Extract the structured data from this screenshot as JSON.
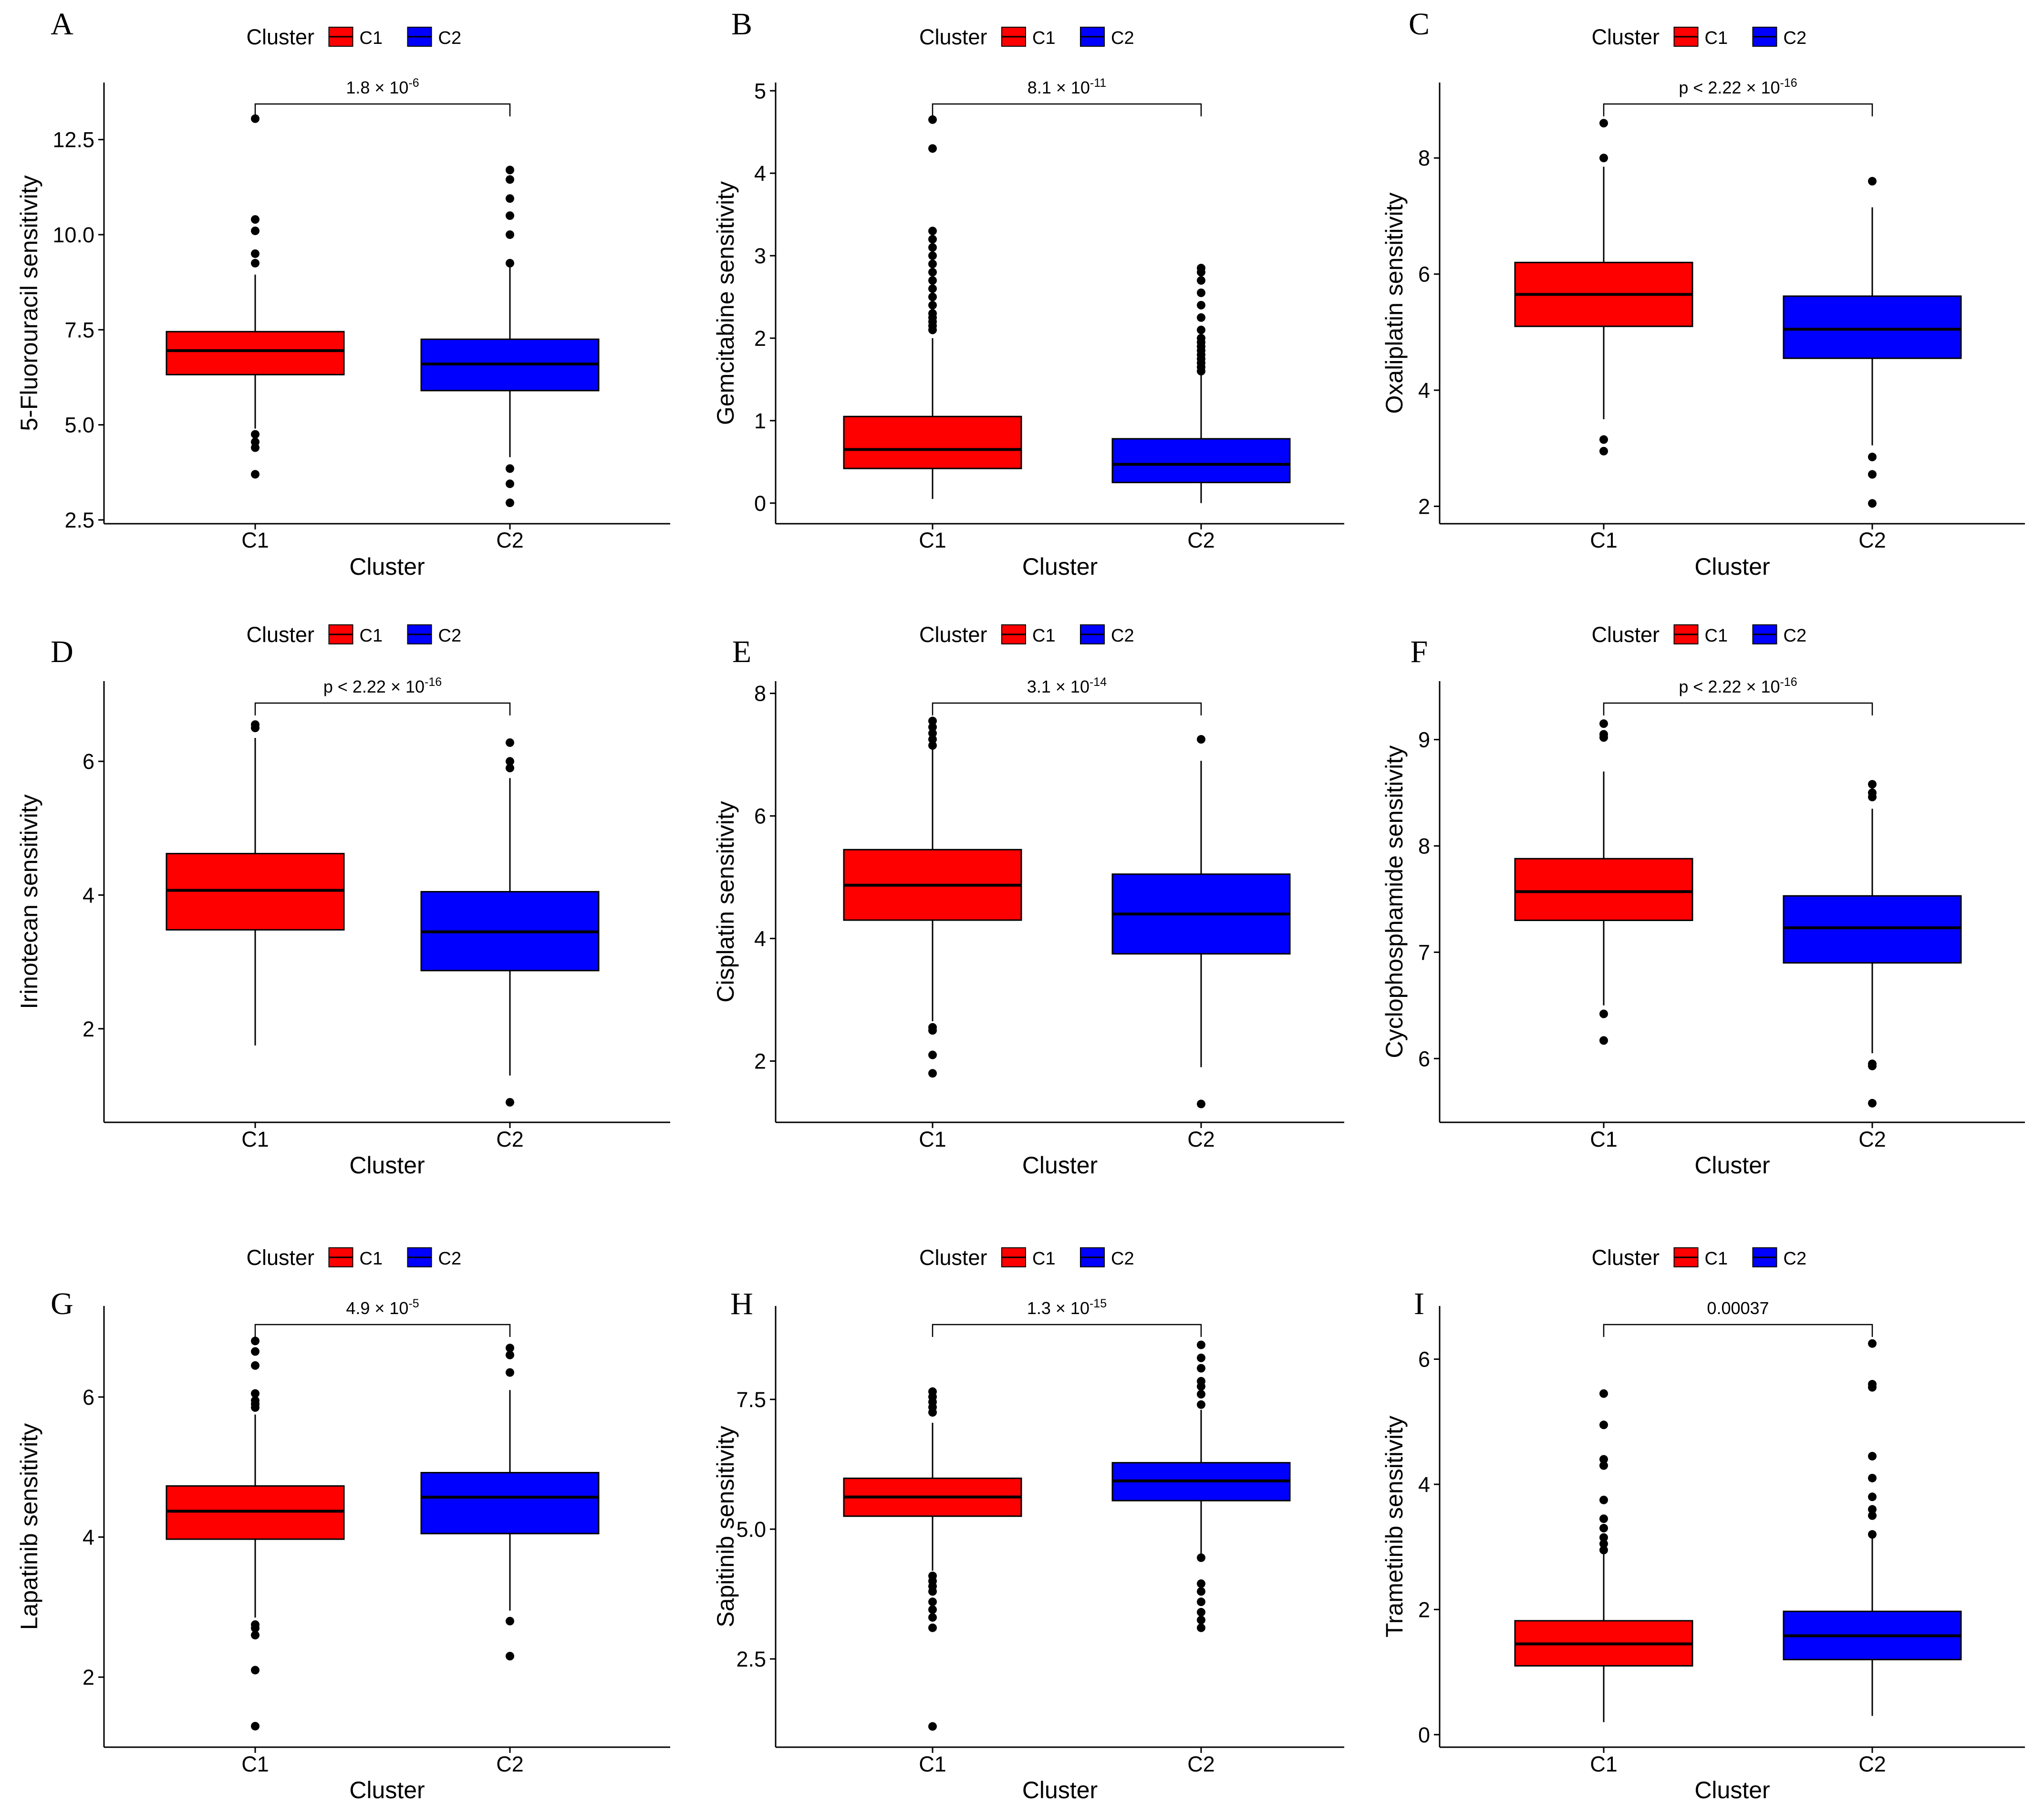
{
  "figure": {
    "legend_title": "Cluster",
    "x_axis_label": "Cluster",
    "colors": {
      "C1": "#FF0000",
      "C2": "#0000FF"
    }
  },
  "chart_data": [
    {
      "panel": "A",
      "type": "boxplot",
      "ylabel": "5-Fluorouracil sensitivity",
      "xlabel": "Cluster",
      "categories": [
        "C1",
        "C2"
      ],
      "ylim": [
        2.4,
        14.0
      ],
      "yticks": [
        2.5,
        5.0,
        7.5,
        10.0,
        12.5
      ],
      "ytick_labels": [
        "2.5",
        "5.0",
        "7.5",
        "10.0",
        "12.5"
      ],
      "legend": {
        "title": "Cluster",
        "entries": [
          "C1",
          "C2"
        ]
      },
      "pvalue": {
        "base": "1.8 × 10",
        "exp": "-6"
      },
      "series": [
        {
          "name": "C1",
          "color": "#FF0000",
          "q1": 6.32,
          "median": 6.95,
          "q3": 7.45,
          "whisker_low": 4.9,
          "whisker_high": 8.95,
          "outliers": [
            13.05,
            10.4,
            10.1,
            9.5,
            9.25,
            4.75,
            4.55,
            4.4,
            3.7
          ]
        },
        {
          "name": "C2",
          "color": "#0000FF",
          "q1": 5.9,
          "median": 6.6,
          "q3": 7.25,
          "whisker_low": 4.15,
          "whisker_high": 9.15,
          "outliers": [
            11.7,
            11.45,
            10.95,
            10.5,
            10.0,
            9.25,
            3.85,
            3.45,
            2.95
          ]
        }
      ]
    },
    {
      "panel": "B",
      "type": "boxplot",
      "ylabel": "Gemcitabine sensitivity",
      "xlabel": "Cluster",
      "categories": [
        "C1",
        "C2"
      ],
      "ylim": [
        -0.25,
        5.1
      ],
      "yticks": [
        0,
        1,
        2,
        3,
        4,
        5
      ],
      "ytick_labels": [
        "0",
        "1",
        "2",
        "3",
        "4",
        "5"
      ],
      "legend": {
        "title": "Cluster",
        "entries": [
          "C1",
          "C2"
        ]
      },
      "pvalue": {
        "base": "8.1 × 10",
        "exp": "-11"
      },
      "series": [
        {
          "name": "C1",
          "color": "#FF0000",
          "q1": 0.42,
          "median": 0.65,
          "q3": 1.05,
          "whisker_low": 0.05,
          "whisker_high": 2.0,
          "outliers": [
            4.65,
            4.3,
            3.3,
            3.2,
            3.1,
            3.0,
            2.9,
            2.8,
            2.7,
            2.6,
            2.5,
            2.4,
            2.3,
            2.25,
            2.2,
            2.15,
            2.1
          ]
        },
        {
          "name": "C2",
          "color": "#0000FF",
          "q1": 0.25,
          "median": 0.47,
          "q3": 0.78,
          "whisker_low": 0.0,
          "whisker_high": 1.55,
          "outliers": [
            2.85,
            2.8,
            2.7,
            2.55,
            2.4,
            2.25,
            2.1,
            2.0,
            1.95,
            1.9,
            1.85,
            1.8,
            1.75,
            1.7,
            1.65,
            1.6
          ]
        }
      ]
    },
    {
      "panel": "C",
      "type": "boxplot",
      "ylabel": "Oxaliplatin sensitivity",
      "xlabel": "Cluster",
      "categories": [
        "C1",
        "C2"
      ],
      "ylim": [
        1.7,
        9.3
      ],
      "yticks": [
        2,
        4,
        6,
        8
      ],
      "ytick_labels": [
        "2",
        "4",
        "6",
        "8"
      ],
      "legend": {
        "title": "Cluster",
        "entries": [
          "C1",
          "C2"
        ]
      },
      "pvalue": {
        "base": "p < 2.22 × 10",
        "exp": "-16"
      },
      "series": [
        {
          "name": "C1",
          "color": "#FF0000",
          "q1": 5.1,
          "median": 5.65,
          "q3": 6.2,
          "whisker_low": 3.5,
          "whisker_high": 7.85,
          "outliers": [
            8.6,
            8.0,
            3.15,
            2.95
          ]
        },
        {
          "name": "C2",
          "color": "#0000FF",
          "q1": 4.55,
          "median": 5.05,
          "q3": 5.62,
          "whisker_low": 3.05,
          "whisker_high": 7.15,
          "outliers": [
            7.6,
            2.85,
            2.55,
            2.05
          ]
        }
      ]
    },
    {
      "panel": "D",
      "type": "boxplot",
      "ylabel": "Irinotecan sensitivity",
      "xlabel": "Cluster",
      "categories": [
        "C1",
        "C2"
      ],
      "ylim": [
        0.6,
        7.2
      ],
      "yticks": [
        2,
        4,
        6
      ],
      "ytick_labels": [
        "2",
        "4",
        "6"
      ],
      "legend": {
        "title": "Cluster",
        "entries": [
          "C1",
          "C2"
        ]
      },
      "pvalue": {
        "base": "p < 2.22 × 10",
        "exp": "-16"
      },
      "series": [
        {
          "name": "C1",
          "color": "#FF0000",
          "q1": 3.48,
          "median": 4.07,
          "q3": 4.62,
          "whisker_low": 1.75,
          "whisker_high": 6.35,
          "outliers": [
            6.55,
            6.5
          ]
        },
        {
          "name": "C2",
          "color": "#0000FF",
          "q1": 2.87,
          "median": 3.45,
          "q3": 4.05,
          "whisker_low": 1.3,
          "whisker_high": 5.75,
          "outliers": [
            6.28,
            6.0,
            5.9,
            0.9
          ]
        }
      ]
    },
    {
      "panel": "E",
      "type": "boxplot",
      "ylabel": "Cisplatin sensitivity",
      "xlabel": "Cluster",
      "categories": [
        "C1",
        "C2"
      ],
      "ylim": [
        1.0,
        8.2
      ],
      "yticks": [
        2,
        4,
        6,
        8
      ],
      "ytick_labels": [
        "2",
        "4",
        "6",
        "8"
      ],
      "legend": {
        "title": "Cluster",
        "entries": [
          "C1",
          "C2"
        ]
      },
      "pvalue": {
        "base": "3.1 × 10",
        "exp": "-14"
      },
      "series": [
        {
          "name": "C1",
          "color": "#FF0000",
          "q1": 4.3,
          "median": 4.87,
          "q3": 5.45,
          "whisker_low": 2.65,
          "whisker_high": 7.1,
          "outliers": [
            7.55,
            7.45,
            7.35,
            7.25,
            7.15,
            2.55,
            2.5,
            2.1,
            1.8
          ]
        },
        {
          "name": "C2",
          "color": "#0000FF",
          "q1": 3.75,
          "median": 4.4,
          "q3": 5.05,
          "whisker_low": 1.9,
          "whisker_high": 6.9,
          "outliers": [
            7.25,
            1.3
          ]
        }
      ]
    },
    {
      "panel": "F",
      "type": "boxplot",
      "ylabel": "Cyclophosphamide sensitivity",
      "xlabel": "Cluster",
      "categories": [
        "C1",
        "C2"
      ],
      "ylim": [
        5.4,
        9.55
      ],
      "yticks": [
        6,
        7,
        8,
        9
      ],
      "ytick_labels": [
        "6",
        "7",
        "8",
        "9"
      ],
      "legend": {
        "title": "Cluster",
        "entries": [
          "C1",
          "C2"
        ]
      },
      "pvalue": {
        "base": "p < 2.22 × 10",
        "exp": "-16"
      },
      "series": [
        {
          "name": "C1",
          "color": "#FF0000",
          "q1": 7.3,
          "median": 7.57,
          "q3": 7.88,
          "whisker_low": 6.5,
          "whisker_high": 8.7,
          "outliers": [
            9.15,
            9.05,
            9.02,
            6.42,
            6.17
          ]
        },
        {
          "name": "C2",
          "color": "#0000FF",
          "q1": 6.9,
          "median": 7.23,
          "q3": 7.53,
          "whisker_low": 6.05,
          "whisker_high": 8.35,
          "outliers": [
            8.58,
            8.5,
            8.46,
            5.95,
            5.93,
            5.58
          ]
        }
      ]
    },
    {
      "panel": "G",
      "type": "boxplot",
      "ylabel": "Lapatinib sensitivity",
      "xlabel": "Cluster",
      "categories": [
        "C1",
        "C2"
      ],
      "ylim": [
        1.0,
        7.3
      ],
      "yticks": [
        2,
        4,
        6
      ],
      "ytick_labels": [
        "2",
        "4",
        "6"
      ],
      "legend": {
        "title": "Cluster",
        "entries": [
          "C1",
          "C2"
        ]
      },
      "pvalue": {
        "base": "4.9 × 10",
        "exp": "-5"
      },
      "series": [
        {
          "name": "C1",
          "color": "#FF0000",
          "q1": 3.97,
          "median": 4.37,
          "q3": 4.73,
          "whisker_low": 2.85,
          "whisker_high": 5.75,
          "outliers": [
            6.8,
            6.65,
            6.45,
            6.05,
            5.95,
            5.9,
            5.85,
            2.75,
            2.7,
            2.6,
            2.1,
            1.3
          ]
        },
        {
          "name": "C2",
          "color": "#0000FF",
          "q1": 4.05,
          "median": 4.57,
          "q3": 4.92,
          "whisker_low": 2.95,
          "whisker_high": 6.1,
          "outliers": [
            6.7,
            6.6,
            6.35,
            2.8,
            2.3
          ]
        }
      ]
    },
    {
      "panel": "H",
      "type": "boxplot",
      "ylabel": "Sapitinib sensitivity",
      "xlabel": "Cluster",
      "categories": [
        "C1",
        "C2"
      ],
      "ylim": [
        0.8,
        9.3
      ],
      "yticks": [
        2.5,
        5.0,
        7.5
      ],
      "ytick_labels": [
        "2.5",
        "5.0",
        "7.5"
      ],
      "legend": {
        "title": "Cluster",
        "entries": [
          "C1",
          "C2"
        ]
      },
      "pvalue": {
        "base": "1.3 × 10",
        "exp": "-15"
      },
      "series": [
        {
          "name": "C1",
          "color": "#FF0000",
          "q1": 5.25,
          "median": 5.62,
          "q3": 5.98,
          "whisker_low": 4.2,
          "whisker_high": 7.05,
          "outliers": [
            7.65,
            7.55,
            7.45,
            7.35,
            7.25,
            4.1,
            4.0,
            3.9,
            3.8,
            3.6,
            3.45,
            3.3,
            3.1,
            1.2
          ]
        },
        {
          "name": "C2",
          "color": "#0000FF",
          "q1": 5.55,
          "median": 5.93,
          "q3": 6.28,
          "whisker_low": 4.5,
          "whisker_high": 7.3,
          "outliers": [
            8.55,
            8.3,
            8.1,
            7.85,
            7.75,
            7.6,
            7.4,
            4.45,
            3.95,
            3.8,
            3.6,
            3.4,
            3.25,
            3.1
          ]
        }
      ]
    },
    {
      "panel": "I",
      "type": "boxplot",
      "ylabel": "Trametinib sensitivity",
      "xlabel": "Cluster",
      "categories": [
        "C1",
        "C2"
      ],
      "ylim": [
        -0.2,
        6.85
      ],
      "yticks": [
        0,
        2,
        4,
        6
      ],
      "ytick_labels": [
        "0",
        "2",
        "4",
        "6"
      ],
      "legend": {
        "title": "Cluster",
        "entries": [
          "C1",
          "C2"
        ]
      },
      "pvalue": {
        "base": "0.00037",
        "exp": ""
      },
      "series": [
        {
          "name": "C1",
          "color": "#FF0000",
          "q1": 1.1,
          "median": 1.45,
          "q3": 1.82,
          "whisker_low": 0.2,
          "whisker_high": 2.9,
          "outliers": [
            5.45,
            4.95,
            4.4,
            4.3,
            3.75,
            3.45,
            3.3,
            3.15,
            3.05,
            2.95
          ]
        },
        {
          "name": "C2",
          "color": "#0000FF",
          "q1": 1.2,
          "median": 1.58,
          "q3": 1.97,
          "whisker_low": 0.3,
          "whisker_high": 3.15,
          "outliers": [
            6.25,
            5.6,
            5.55,
            4.45,
            4.1,
            3.8,
            3.6,
            3.5,
            3.2
          ]
        }
      ]
    }
  ]
}
